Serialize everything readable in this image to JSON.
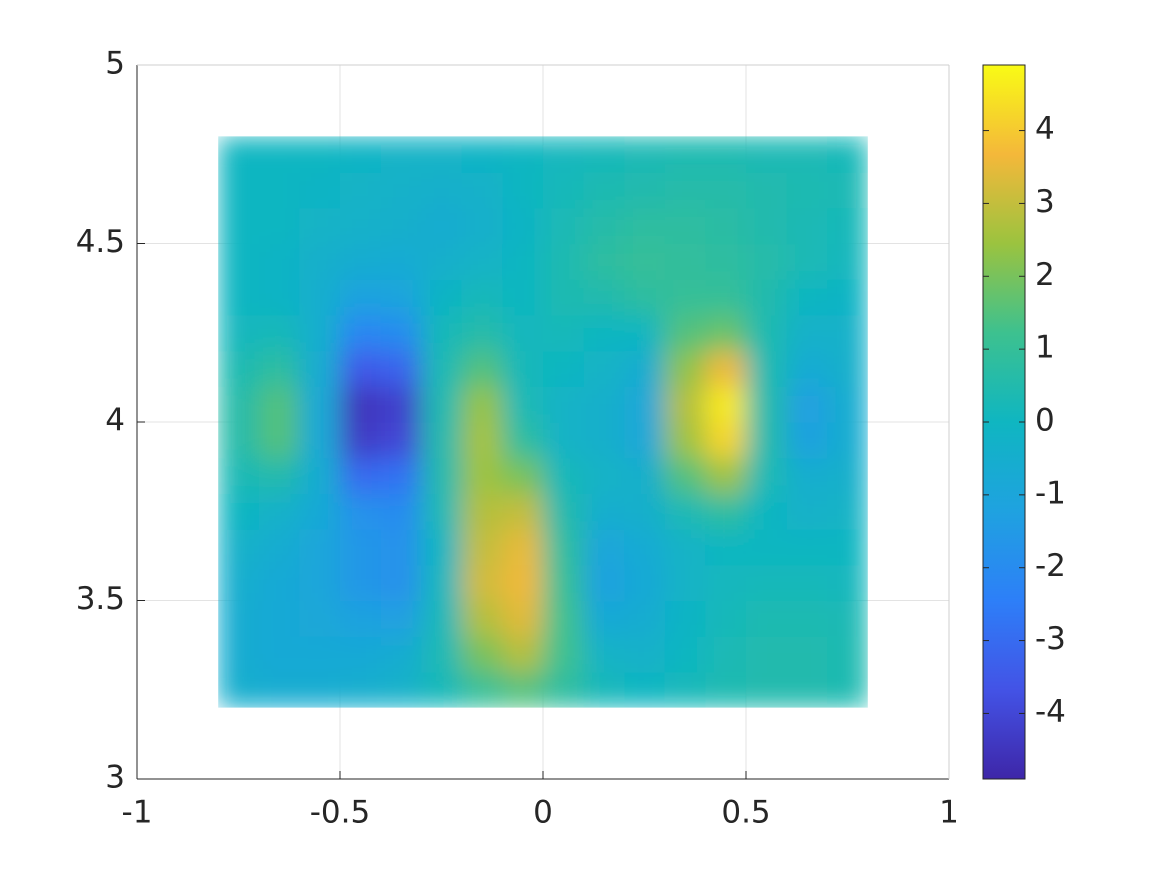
{
  "chart_data": {
    "type": "heatmap",
    "x": [
      -0.75,
      -0.65,
      -0.55,
      -0.45,
      -0.35,
      -0.25,
      -0.15,
      -0.05,
      0.05,
      0.15,
      0.25,
      0.35,
      0.45,
      0.55,
      0.65,
      0.75
    ],
    "y": [
      3.25,
      3.35,
      3.45,
      3.55,
      3.65,
      3.75,
      3.85,
      3.95,
      4.05,
      4.15,
      4.25,
      4.35,
      4.45,
      4.55,
      4.65,
      4.75
    ],
    "z": [
      [
        -0.5,
        -0.6,
        -0.6,
        -0.5,
        -0.3,
        0.2,
        1.0,
        1.5,
        0.8,
        0.2,
        0,
        0.2,
        0.4,
        0.5,
        0.5,
        0.4
      ],
      [
        -0.6,
        -0.8,
        -0.8,
        -0.8,
        -0.6,
        0.3,
        2.0,
        2.8,
        1.2,
        -0.2,
        -0.3,
        0,
        0.3,
        0.5,
        0.5,
        0.4
      ],
      [
        -0.6,
        -0.8,
        -0.9,
        -1.2,
        -1.3,
        0.2,
        2.8,
        3.4,
        1.2,
        -0.8,
        -0.6,
        -0.1,
        0.2,
        0.4,
        0.4,
        0.3
      ],
      [
        -0.5,
        -0.8,
        -1.0,
        -1.6,
        -1.8,
        0.1,
        3.2,
        3.6,
        1.0,
        -1.2,
        -0.8,
        -0.2,
        0.1,
        0.2,
        0.2,
        0.1
      ],
      [
        -0.3,
        -0.6,
        -1.0,
        -1.6,
        -1.8,
        0,
        3.0,
        3.5,
        0.8,
        -1.0,
        -0.7,
        -0.2,
        0,
        0,
        0,
        0
      ],
      [
        0,
        -0.3,
        -0.8,
        -1.8,
        -2.0,
        0.3,
        2.8,
        3.0,
        0.5,
        -0.5,
        -0.4,
        0.3,
        0.8,
        0,
        -0.3,
        -0.2
      ],
      [
        0.3,
        0.5,
        -0.6,
        -3.0,
        -2.8,
        0.5,
        2.5,
        2.0,
        0.2,
        -0.2,
        -0.4,
        1.5,
        2.5,
        0.3,
        -0.5,
        -0.4
      ],
      [
        0.6,
        1.5,
        -0.8,
        -4.3,
        -4.0,
        0.5,
        2.6,
        0.8,
        -0.2,
        -0.4,
        -0.9,
        2.5,
        4.2,
        0.5,
        -1.2,
        -0.6
      ],
      [
        0.6,
        1.5,
        -0.8,
        -4.5,
        -4.2,
        0.4,
        2.4,
        0.3,
        -0.2,
        -0.4,
        -0.9,
        2.8,
        4.6,
        0.5,
        -1.3,
        -0.6
      ],
      [
        0.4,
        0.8,
        -0.6,
        -3.5,
        -3.2,
        0.3,
        1.5,
        0.2,
        0,
        -0.2,
        -0.6,
        2.3,
        3.6,
        0.4,
        -0.7,
        -0.4
      ],
      [
        0.1,
        0.2,
        -0.5,
        -2.2,
        -2.0,
        0.2,
        0.6,
        0.1,
        0.2,
        0,
        0,
        1.5,
        1.8,
        0.4,
        -0.3,
        -0.3
      ],
      [
        0,
        -0.1,
        -0.5,
        -1.2,
        -1.1,
        -0.1,
        0.2,
        0,
        0.4,
        0.5,
        0.8,
        1.0,
        1.0,
        0.5,
        0,
        -0.1
      ],
      [
        0,
        -0.1,
        -0.4,
        -0.6,
        -0.7,
        -0.4,
        -0.2,
        0,
        0.4,
        0.8,
        1.0,
        0.9,
        0.8,
        0.6,
        0.3,
        0.1
      ],
      [
        0,
        0,
        -0.2,
        -0.3,
        -0.4,
        -0.6,
        -0.4,
        -0.1,
        0.3,
        0.6,
        0.8,
        0.8,
        0.7,
        0.5,
        0.3,
        0.2
      ],
      [
        0,
        0,
        -0.1,
        -0.2,
        -0.3,
        -0.4,
        -0.3,
        0,
        0.2,
        0.4,
        0.5,
        0.6,
        0.6,
        0.5,
        0.4,
        0.3
      ],
      [
        0,
        0,
        0,
        -0.1,
        -0.2,
        -0.2,
        -0.1,
        0,
        0.1,
        0.2,
        0.3,
        0.4,
        0.4,
        0.3,
        0.3,
        0.2
      ]
    ],
    "xlim": [
      -1,
      1
    ],
    "xticks": [
      -1,
      -0.5,
      0,
      0.5,
      1
    ],
    "ylim": [
      3,
      5
    ],
    "yticks": [
      3,
      3.5,
      4,
      4.5,
      5
    ],
    "grid": true,
    "clim": [
      -4.9,
      4.9
    ],
    "cticks": [
      -4,
      -3,
      -2,
      -1,
      0,
      1,
      2,
      3,
      4
    ],
    "colormap": [
      {
        "stop": 0,
        "color": "#3e26a8"
      },
      {
        "stop": 0.125,
        "color": "#4353e6"
      },
      {
        "stop": 0.25,
        "color": "#2d7ff8"
      },
      {
        "stop": 0.375,
        "color": "#1fa2e0"
      },
      {
        "stop": 0.5,
        "color": "#0fb6c1"
      },
      {
        "stop": 0.625,
        "color": "#3dc18f"
      },
      {
        "stop": 0.75,
        "color": "#9bc33f"
      },
      {
        "stop": 0.875,
        "color": "#f4b83a"
      },
      {
        "stop": 1,
        "color": "#f9fb15"
      }
    ]
  }
}
